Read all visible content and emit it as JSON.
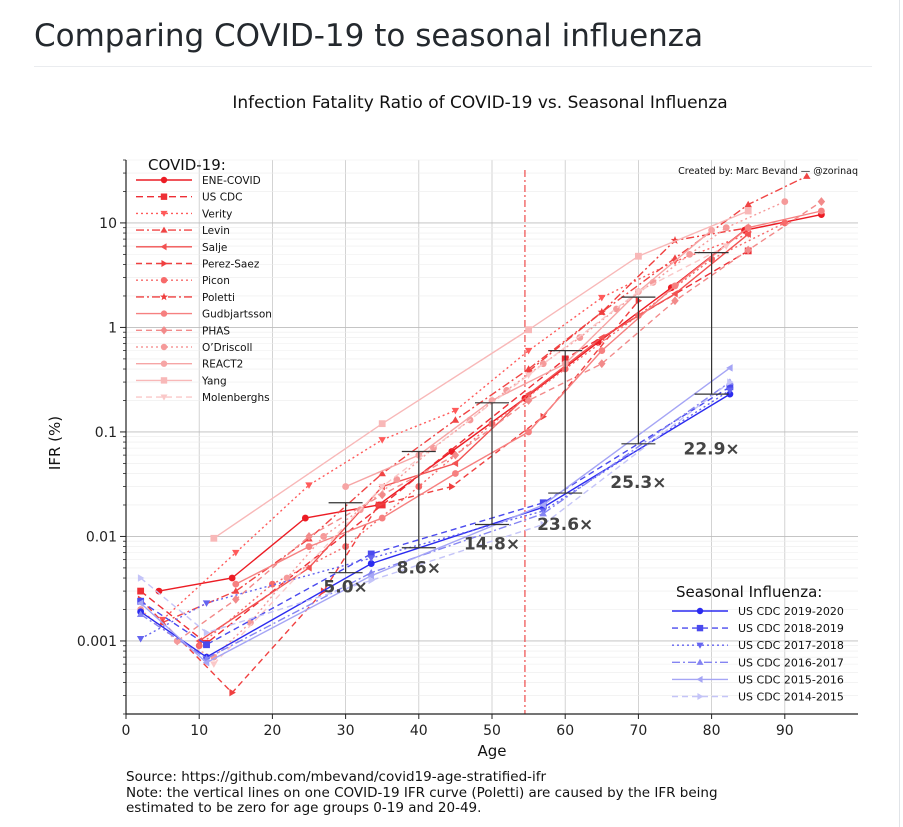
{
  "page": {
    "heading": "Comparing COVID-19 to seasonal influenza",
    "source_line": "Source: https://github.com/mbevand/covid19-age-stratified-ifr",
    "note_line1": "Note: the vertical lines on one COVID-19 IFR curve (Poletti) are caused by the IFR being",
    "note_line2": "estimated to be zero for age groups 0-19 and 20-49."
  },
  "chart_data": {
    "type": "line",
    "title": "Infection Fatality Ratio of COVID-19 vs. Seasonal Influenza",
    "credit": "Created by: Marc Bevand — @zorinaq",
    "xlabel": "Age",
    "ylabel": "IFR (%)",
    "xlim": [
      0,
      100
    ],
    "ylim": [
      0.0002,
      40
    ],
    "yscale": "log",
    "grid": true,
    "x_ticks": [
      "0",
      "10",
      "20",
      "30",
      "40",
      "50",
      "60",
      "70",
      "80",
      "90"
    ],
    "y_ticks": [
      "0.001",
      "0.01",
      "0.1",
      "1",
      "10"
    ],
    "covid_legend_title": "COVID-19:",
    "flu_legend_title": "Seasonal Influenza:",
    "covid_series": [
      {
        "name": "ENE-COVID",
        "color": "#ec1c24",
        "dash": "",
        "marker": "circle",
        "x": [
          4.5,
          14.5,
          24.5,
          34.5,
          44.5,
          54.5,
          64.5,
          74.5,
          84.5,
          95
        ],
        "y": [
          0.003,
          0.004,
          0.015,
          0.02,
          0.065,
          0.21,
          0.72,
          2.4,
          8.5,
          12
        ]
      },
      {
        "name": "US CDC",
        "color": "#ee2f36",
        "dash": "7,4",
        "marker": "square",
        "x": [
          2,
          11,
          35,
          60,
          85
        ],
        "y": [
          0.003,
          0.00095,
          0.02,
          0.5,
          5.4
        ]
      },
      {
        "name": "Verity",
        "color": "#ff5a5a",
        "dash": "2,3",
        "marker": "tridown",
        "x": [
          5,
          15,
          25,
          35,
          45,
          55,
          65,
          75,
          85
        ],
        "y": [
          0.0016,
          0.007,
          0.031,
          0.084,
          0.16,
          0.6,
          1.93,
          4.28,
          7.8
        ]
      },
      {
        "name": "Levin",
        "color": "#f04545",
        "dash": "8,3,2,3",
        "marker": "triup",
        "x": [
          5,
          15,
          25,
          35,
          45,
          55,
          65,
          75,
          85,
          93
        ],
        "y": [
          0.0015,
          0.003,
          0.0095,
          0.04,
          0.13,
          0.4,
          1.4,
          4.6,
          15,
          28
        ]
      },
      {
        "name": "Salje",
        "color": "#f25252",
        "dash": "",
        "marker": "triangle-left",
        "x": [
          10,
          25,
          35,
          45,
          55,
          65,
          75,
          85
        ],
        "y": [
          0.001,
          0.005,
          0.03,
          0.05,
          0.23,
          0.8,
          2.1,
          7.8
        ]
      },
      {
        "name": "Perez-Saez",
        "color": "#f04040",
        "dash": "6,4",
        "marker": "triangle-right",
        "x": [
          2,
          14.5,
          27,
          34.5,
          44.5,
          57,
          70
        ],
        "y": [
          0.0025,
          0.00032,
          0.003,
          0.02,
          0.03,
          0.14,
          1.8
        ]
      },
      {
        "name": "Picon",
        "color": "#f76a6a",
        "dash": "2,3",
        "marker": "circle",
        "x": [
          10,
          20,
          30,
          40,
          50,
          60,
          70,
          80,
          90
        ],
        "y": [
          0.0009,
          0.0035,
          0.008,
          0.03,
          0.12,
          0.4,
          1.3,
          4.5,
          10
        ]
      },
      {
        "name": "Poletti",
        "color": "#ef3e3e",
        "dash": "8,3,2,3",
        "marker": "star",
        "x": [
          55,
          65,
          75,
          85
        ],
        "y": [
          0.38,
          1.4,
          6.8,
          9
        ]
      },
      {
        "name": "Gudbjartsson",
        "color": "#f68080",
        "dash": "",
        "marker": "circle",
        "x": [
          15,
          25,
          35,
          45,
          55,
          65,
          75,
          85,
          95
        ],
        "y": [
          0.0035,
          0.008,
          0.015,
          0.04,
          0.1,
          0.6,
          2.5,
          9,
          13
        ]
      },
      {
        "name": "PHAS",
        "color": "#f28a8a",
        "dash": "6,4",
        "marker": "diamond",
        "x": [
          7,
          15,
          25,
          35,
          45,
          55,
          65,
          75,
          85,
          95
        ],
        "y": [
          0.001,
          0.0025,
          0.01,
          0.025,
          0.06,
          0.2,
          0.45,
          1.8,
          5.5,
          16
        ]
      },
      {
        "name": "O’Driscoll",
        "color": "#f59a9a",
        "dash": "2,3",
        "marker": "circle",
        "x": [
          2,
          7,
          12,
          17,
          22,
          27,
          32,
          37,
          42,
          47,
          52,
          57,
          62,
          67,
          72,
          77,
          82,
          90
        ],
        "y": [
          0.002,
          0.001,
          0.0007,
          0.0015,
          0.004,
          0.01,
          0.018,
          0.035,
          0.07,
          0.13,
          0.25,
          0.45,
          0.8,
          1.5,
          2.7,
          5,
          9,
          16
        ]
      },
      {
        "name": "REACT2",
        "color": "#f6a5a5",
        "dash": "",
        "marker": "circle",
        "x": [
          30,
          40,
          50,
          60,
          70,
          80
        ],
        "y": [
          0.03,
          0.06,
          0.2,
          0.45,
          2.2,
          8.5
        ]
      },
      {
        "name": "Yang",
        "color": "#f8b8b8",
        "dash": "",
        "marker": "square",
        "x": [
          12,
          35,
          55,
          70,
          85
        ],
        "y": [
          0.0096,
          0.12,
          0.95,
          4.8,
          13
        ]
      },
      {
        "name": "Molenberghs",
        "color": "#fac8c8",
        "dash": "6,4",
        "marker": "tridown",
        "x": [
          12,
          35,
          55,
          70,
          82
        ],
        "y": [
          0.0006,
          0.03,
          0.35,
          2.2,
          6
        ]
      }
    ],
    "flu_series": [
      {
        "name": "US CDC 2019-2020",
        "color": "#2b2bf0",
        "dash": "",
        "marker": "circle",
        "x": [
          2,
          11,
          33.5,
          57,
          82.5
        ],
        "y": [
          0.0019,
          0.0007,
          0.0055,
          0.019,
          0.23
        ]
      },
      {
        "name": "US CDC 2018-2019",
        "color": "#4a4aee",
        "dash": "6,4",
        "marker": "square",
        "x": [
          2,
          11,
          33.5,
          57,
          82.5
        ],
        "y": [
          0.0024,
          0.00092,
          0.0068,
          0.021,
          0.27
        ]
      },
      {
        "name": "US CDC 2017-2018",
        "color": "#6464f0",
        "dash": "2,3",
        "marker": "tridown",
        "x": [
          2,
          11,
          33.5,
          57,
          82.5
        ],
        "y": [
          0.00105,
          0.0023,
          0.0062,
          0.0175,
          0.25
        ]
      },
      {
        "name": "US CDC 2016-2017",
        "color": "#8484f2",
        "dash": "8,3,2,3",
        "marker": "triup",
        "x": [
          2,
          11,
          33.5,
          57,
          82.5
        ],
        "y": [
          0.0018,
          0.00068,
          0.0045,
          0.0165,
          0.3
        ]
      },
      {
        "name": "US CDC 2015-2016",
        "color": "#a5a5f5",
        "dash": "",
        "marker": "triangle-left",
        "x": [
          2,
          11,
          33.5,
          57,
          82.5
        ],
        "y": [
          0.0023,
          0.00062,
          0.0042,
          0.02,
          0.41
        ]
      },
      {
        "name": "US CDC 2014-2015",
        "color": "#c4c4f8",
        "dash": "6,4",
        "marker": "triangle-right",
        "x": [
          2,
          11,
          33.5,
          57,
          82.5
        ],
        "y": [
          0.004,
          0.0012,
          0.0038,
          0.013,
          0.3
        ]
      }
    ],
    "comparison_bars": [
      {
        "x": 30,
        "low": 0.0045,
        "high": 0.021,
        "label": "5.0×",
        "label_x": 30,
        "label_y": 0.0029
      },
      {
        "x": 40,
        "low": 0.0078,
        "high": 0.065,
        "label": "8.6×",
        "label_x": 40,
        "label_y": 0.0044
      },
      {
        "x": 50,
        "low": 0.013,
        "high": 0.19,
        "label": "14.8×",
        "label_x": 50,
        "label_y": 0.0075
      },
      {
        "x": 60,
        "low": 0.026,
        "high": 0.6,
        "label": "23.6×",
        "label_x": 60,
        "label_y": 0.0115
      },
      {
        "x": 70,
        "low": 0.077,
        "high": 1.95,
        "label": "25.3×",
        "label_x": 70,
        "label_y": 0.029
      },
      {
        "x": 80,
        "low": 0.23,
        "high": 5.2,
        "label": "22.9×",
        "label_x": 80,
        "label_y": 0.061
      }
    ],
    "vertical_marker_x": 54.5
  }
}
